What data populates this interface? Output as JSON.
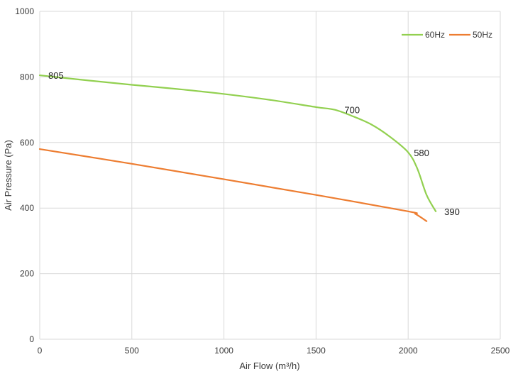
{
  "chart_data": {
    "type": "line",
    "title": "",
    "xlabel": "Air Flow  (m³/h)",
    "ylabel": "Air Pressure  (Pa)",
    "xlim": [
      0,
      2500
    ],
    "ylim": [
      0,
      1000
    ],
    "xticks": [
      0,
      500,
      1000,
      1500,
      2000,
      2500
    ],
    "yticks": [
      0,
      200,
      400,
      600,
      800,
      1000
    ],
    "xtick_labels": [
      "0",
      "500",
      "1000",
      "1500",
      "2000",
      "2500"
    ],
    "ytick_labels": [
      "0",
      "200",
      "400",
      "600",
      "800",
      "1000"
    ],
    "grid": true,
    "legend_position": "top-right",
    "series": [
      {
        "name": "60Hz",
        "color": "#92d050",
        "points": [
          {
            "x": 0,
            "y": 805
          },
          {
            "x": 250,
            "y": 790
          },
          {
            "x": 500,
            "y": 776
          },
          {
            "x": 750,
            "y": 763
          },
          {
            "x": 1000,
            "y": 748
          },
          {
            "x": 1250,
            "y": 730
          },
          {
            "x": 1500,
            "y": 708
          },
          {
            "x": 1600,
            "y": 700
          },
          {
            "x": 1700,
            "y": 680
          },
          {
            "x": 1800,
            "y": 655
          },
          {
            "x": 1900,
            "y": 618
          },
          {
            "x": 2000,
            "y": 570
          },
          {
            "x": 2050,
            "y": 520
          },
          {
            "x": 2100,
            "y": 440
          },
          {
            "x": 2150,
            "y": 390
          }
        ]
      },
      {
        "name": "50Hz",
        "color": "#ed7d31",
        "points": [
          {
            "x": 0,
            "y": 580
          },
          {
            "x": 500,
            "y": 535
          },
          {
            "x": 1000,
            "y": 488
          },
          {
            "x": 1500,
            "y": 440
          },
          {
            "x": 2000,
            "y": 390
          },
          {
            "x": 2040,
            "y": 382
          },
          {
            "x": 2100,
            "y": 360
          }
        ]
      }
    ],
    "annotations": [
      {
        "text": "805",
        "x": 0,
        "y": 805
      },
      {
        "text": "700",
        "x": 1600,
        "y": 700
      },
      {
        "text": "580",
        "x": 2000,
        "y": 580
      },
      {
        "text": "390",
        "x": 2150,
        "y": 390
      }
    ]
  }
}
